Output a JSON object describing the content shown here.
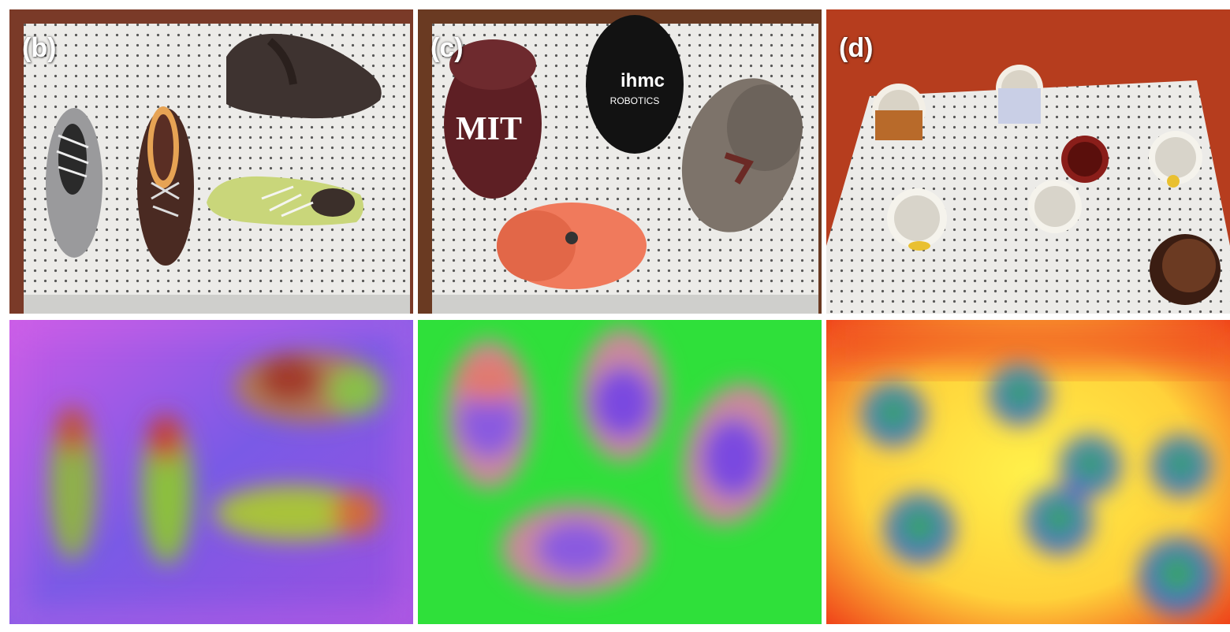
{
  "panels": [
    {
      "label": "(b)",
      "subject": "shoes"
    },
    {
      "label": "(c)",
      "subject": "caps"
    },
    {
      "label": "(d)",
      "subject": "mugs"
    }
  ],
  "caps": {
    "cap1_text": "MIT",
    "cap2_line1": "ihmc",
    "cap2_line2": "ROBOTICS"
  },
  "colors": {
    "background_b": "#7b55e6",
    "background_c": "#2fe03a",
    "background_d": "#ffd23a"
  }
}
